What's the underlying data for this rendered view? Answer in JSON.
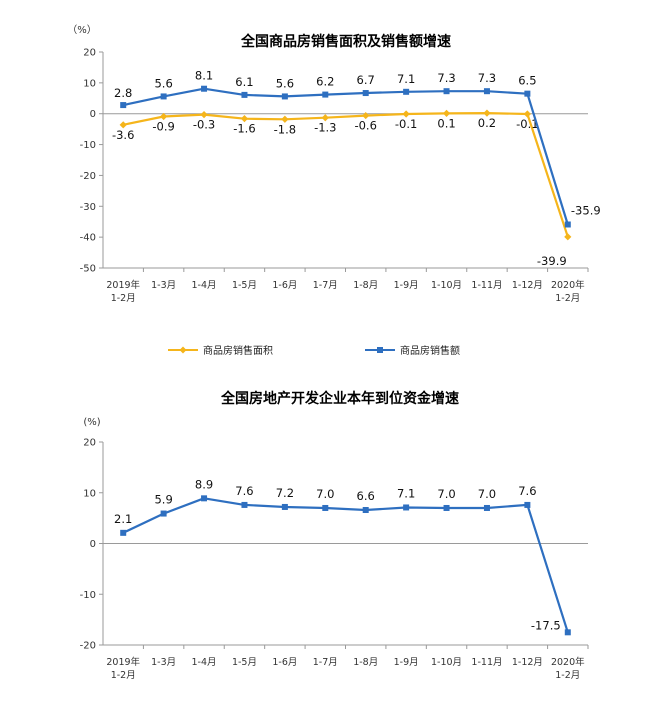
{
  "chart_data": [
    {
      "type": "line",
      "title": "全国商品房销售面积及销售额增速",
      "unit_label": "（%）",
      "categories": [
        [
          "2019年",
          "1-2月"
        ],
        [
          "1-3月"
        ],
        [
          "1-4月"
        ],
        [
          "1-5月"
        ],
        [
          "1-6月"
        ],
        [
          "1-7月"
        ],
        [
          "1-8月"
        ],
        [
          "1-9月"
        ],
        [
          "1-10月"
        ],
        [
          "1-11月"
        ],
        [
          "1-12月"
        ],
        [
          "2020年",
          "1-2月"
        ]
      ],
      "ylim": [
        -50,
        20
      ],
      "yticks": [
        20,
        10,
        0,
        -10,
        -20,
        -30,
        -40,
        -50
      ],
      "legend_position": "bottom",
      "series": [
        {
          "name": "商品房销售面积",
          "color": "#F5B51B",
          "marker": "diamond",
          "values": [
            -3.6,
            -0.9,
            -0.3,
            -1.6,
            -1.8,
            -1.3,
            -0.6,
            -0.1,
            0.1,
            0.2,
            -0.1,
            -39.9
          ],
          "labels": [
            "-3.6",
            "-0.9",
            "-0.3",
            "-1.6",
            "-1.8",
            "-1.3",
            "-0.6",
            "-0.1",
            "0.1",
            "0.2",
            "-0.1",
            "-39.9"
          ]
        },
        {
          "name": "商品房销售额",
          "color": "#2E6FC0",
          "marker": "square",
          "values": [
            2.8,
            5.6,
            8.1,
            6.1,
            5.6,
            6.2,
            6.7,
            7.1,
            7.3,
            7.3,
            6.5,
            -35.9
          ],
          "labels": [
            "2.8",
            "5.6",
            "8.1",
            "6.1",
            "5.6",
            "6.2",
            "6.7",
            "7.1",
            "7.3",
            "7.3",
            "6.5",
            "-35.9"
          ]
        }
      ]
    },
    {
      "type": "line",
      "title": "全国房地产开发企业本年到位资金增速",
      "unit_label": "(%)",
      "categories": [
        [
          "2019年",
          "1-2月"
        ],
        [
          "1-3月"
        ],
        [
          "1-4月"
        ],
        [
          "1-5月"
        ],
        [
          "1-6月"
        ],
        [
          "1-7月"
        ],
        [
          "1-8月"
        ],
        [
          "1-9月"
        ],
        [
          "1-10月"
        ],
        [
          "1-11月"
        ],
        [
          "1-12月"
        ],
        [
          "2020年",
          "1-2月"
        ]
      ],
      "ylim": [
        -20,
        20
      ],
      "yticks": [
        20,
        10,
        0,
        -10,
        -20
      ],
      "series": [
        {
          "color": "#2E6FC0",
          "marker": "square",
          "values": [
            2.1,
            5.9,
            8.9,
            7.6,
            7.2,
            7.0,
            6.6,
            7.1,
            7.0,
            7.0,
            7.6,
            -17.5
          ],
          "labels": [
            "2.1",
            "5.9",
            "8.9",
            "7.6",
            "7.2",
            "7.0",
            "6.6",
            "7.1",
            "7.0",
            "7.0",
            "7.6",
            "-17.5"
          ]
        }
      ]
    }
  ]
}
